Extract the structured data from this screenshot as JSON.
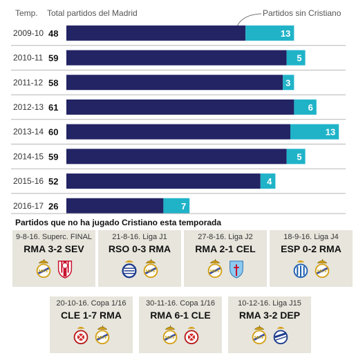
{
  "header": {
    "season": "Temp.",
    "total": "Total partidos del Madrid",
    "without": "Partidos sin Cristiano"
  },
  "colors": {
    "total_bar": "#232464",
    "without_bar": "#20b3c8",
    "card_bg": "#e7e5dc"
  },
  "chart_data": {
    "type": "bar",
    "orientation": "horizontal",
    "stacked": true,
    "categories": [
      "2009-10",
      "2010-11",
      "2011-12",
      "2012-13",
      "2013-14",
      "2014-15",
      "2015-16",
      "2016-17"
    ],
    "series": [
      {
        "name": "Total partidos del Madrid",
        "values": [
          48,
          59,
          58,
          61,
          60,
          59,
          52,
          26
        ]
      },
      {
        "name": "Partidos sin Cristiano",
        "values": [
          13,
          5,
          3,
          6,
          13,
          5,
          4,
          7
        ]
      }
    ],
    "legend": "top"
  },
  "matches": {
    "title": "Partidos que no ha jugado Cristiano esta temporada",
    "cards": [
      {
        "sub": "9-8-16. Superc. FINAL",
        "score": "RMA 3-2 SEV",
        "crests": [
          "real-madrid",
          "sevilla"
        ]
      },
      {
        "sub": "21-8-16. Liga J1",
        "score": "RSO 0-3 RMA",
        "crests": [
          "real-sociedad",
          "real-madrid"
        ]
      },
      {
        "sub": "27-8-16. Liga J2",
        "score": "RMA 2-1 CEL",
        "crests": [
          "real-madrid",
          "celta"
        ]
      },
      {
        "sub": "18-9-16. Liga J4",
        "score": "ESP 0-2 RMA",
        "crests": [
          "espanyol",
          "real-madrid"
        ]
      },
      {
        "sub": "20-10-16. Copa 1/16",
        "score": "CLE 1-7 RMA",
        "crests": [
          "cultural-leonesa",
          "real-madrid"
        ]
      },
      {
        "sub": "30-11-16. Copa 1/16",
        "score": "RMA 6-1 CLE",
        "crests": [
          "real-madrid",
          "cultural-leonesa"
        ]
      },
      {
        "sub": "10-12-16. Liga J15",
        "score": "RMA 3-2 DEP",
        "crests": [
          "real-madrid",
          "deportivo"
        ]
      }
    ]
  }
}
